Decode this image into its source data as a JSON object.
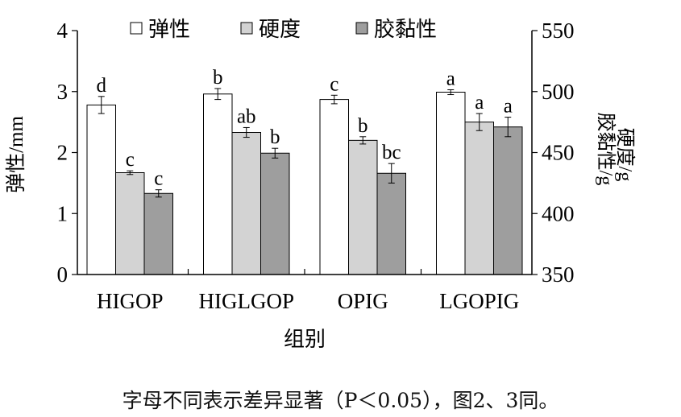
{
  "chart_data": {
    "type": "bar",
    "categories": [
      "HIGOP",
      "HIGLGOP",
      "OPIG",
      "LGOPIG"
    ],
    "xlabel": "组别",
    "ylabel": "弹性/mm",
    "y2label_line1": "硬度/g",
    "y2label_line2": "胶黏性/g",
    "ylim": [
      0,
      4
    ],
    "y2lim": [
      350,
      550
    ],
    "yticks": [
      "0",
      "1",
      "2",
      "3",
      "4"
    ],
    "y2ticks": [
      "350",
      "400",
      "450",
      "500",
      "550"
    ],
    "legend_position": "top",
    "series": [
      {
        "name": "弹性",
        "axis": "left",
        "color": "#ffffff",
        "values": [
          2.78,
          2.96,
          2.87,
          2.99
        ],
        "errors": [
          0.14,
          0.09,
          0.07,
          0.04
        ],
        "letters": [
          "d",
          "b",
          "c",
          "a"
        ]
      },
      {
        "name": "硬度",
        "axis": "right",
        "color": "#d3d3d3",
        "values": [
          433.5,
          466.5,
          460,
          475
        ],
        "errors": [
          1.5,
          4,
          3,
          7
        ],
        "letters": [
          "c",
          "ab",
          "b",
          "a"
        ]
      },
      {
        "name": "胶黏性",
        "axis": "right",
        "color": "#9e9e9e",
        "values": [
          416.5,
          449.5,
          433,
          471
        ],
        "errors": [
          3,
          4,
          8,
          8
        ],
        "letters": [
          "c",
          "b",
          "bc",
          "a"
        ]
      }
    ]
  },
  "caption": "字母不同表示差异显著（P＜0.05），图2、3同。"
}
